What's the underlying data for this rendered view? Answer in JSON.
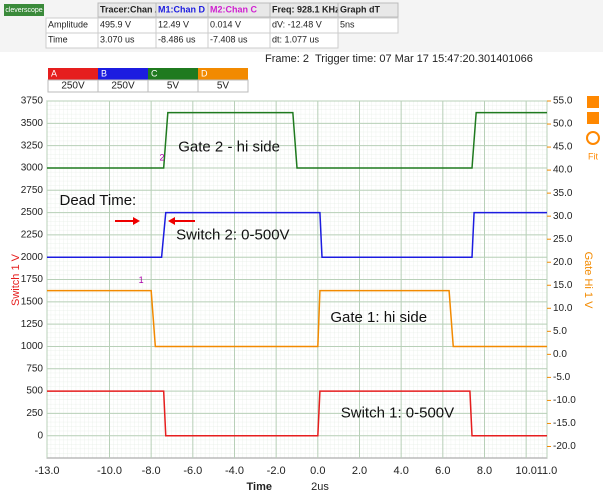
{
  "logo": "cleverscope",
  "measurements": {
    "headers": [
      "Tracer:Chan A",
      "M1:Chan D",
      "M2:Chan C",
      "Freq: 928.1 KHz",
      "Graph dT"
    ],
    "rows": [
      [
        "Amplitude",
        "495.9 V",
        "12.49 V",
        "0.014 V",
        "dV: -12.48 V",
        "5ns"
      ],
      [
        "Time",
        "3.070 us",
        "-8.486 us",
        "-7.408 us",
        "dt:  1.077 us"
      ]
    ]
  },
  "frame": "Frame: 2",
  "trigger": "Trigger time: 07 Mar 17 15:47:20.301401066",
  "channels": [
    {
      "name": "A",
      "scale": "250V",
      "color": "#e61e1e"
    },
    {
      "name": "B",
      "scale": "250V",
      "color": "#1c1ce0"
    },
    {
      "name": "C",
      "scale": "5V",
      "color": "#1f7a1f"
    },
    {
      "name": "D",
      "scale": "5V",
      "color": "#f28a00"
    }
  ],
  "toolbar": {
    "fit": "Fit"
  },
  "chart_data": {
    "type": "line",
    "ylabel": "Switch 1 V",
    "y2label": "Gate Hi 1 V",
    "xlabel": "Time",
    "timebase": "2us",
    "grid": true,
    "xlim": [
      -13,
      11
    ],
    "ylim": [
      -250,
      3750
    ],
    "y2lim": [
      -22.5,
      55
    ],
    "xticks": [
      {
        "value": -13,
        "label": "-13.0"
      },
      {
        "value": -10,
        "label": "-10.0"
      },
      {
        "value": -8,
        "label": "-8.0"
      },
      {
        "value": -6,
        "label": "-6.0"
      },
      {
        "value": -4,
        "label": "-4.0"
      },
      {
        "value": -2,
        "label": "-2.0"
      },
      {
        "value": 0,
        "label": "0.0"
      },
      {
        "value": 2,
        "label": "2.0"
      },
      {
        "value": 4,
        "label": "4.0"
      },
      {
        "value": 6,
        "label": "6.0"
      },
      {
        "value": 8,
        "label": "8.0"
      },
      {
        "value": 10,
        "label": "10.0"
      },
      {
        "value": 11,
        "label": "11.0"
      }
    ],
    "yticks": [
      0,
      250,
      500,
      750,
      1000,
      1250,
      1500,
      1750,
      2000,
      2250,
      2500,
      2750,
      3000,
      3250,
      3500,
      3750
    ],
    "y2ticks": [
      {
        "value": -20,
        "label": "-20.0"
      },
      {
        "value": -15,
        "label": "-15.0"
      },
      {
        "value": -10,
        "label": "-10.0"
      },
      {
        "value": -5,
        "label": "-5.0"
      },
      {
        "value": 0,
        "label": "0.0"
      },
      {
        "value": 5,
        "label": "5.0"
      },
      {
        "value": 10,
        "label": "10.0"
      },
      {
        "value": 15,
        "label": "15.0"
      },
      {
        "value": 20,
        "label": "20.0"
      },
      {
        "value": 25,
        "label": "25.0"
      },
      {
        "value": 30,
        "label": "30.0"
      },
      {
        "value": 35,
        "label": "35.0"
      },
      {
        "value": 40,
        "label": "40.0"
      },
      {
        "value": 45,
        "label": "45.0"
      },
      {
        "value": 50,
        "label": "50.0"
      },
      {
        "value": 55,
        "label": "55.0"
      }
    ],
    "series": [
      {
        "name": "C",
        "color": "#1f7a1f",
        "x": [
          -13,
          -7.4,
          -7.2,
          -1.2,
          -1.0,
          7.4,
          7.6,
          11
        ],
        "values": [
          3000,
          3000,
          3620,
          3620,
          3000,
          3000,
          3620,
          3620
        ]
      },
      {
        "name": "B",
        "color": "#1c1ce0",
        "x": [
          -13,
          -7.5,
          -7.3,
          0.1,
          0.2,
          7.4,
          7.5,
          11
        ],
        "values": [
          2000,
          2000,
          2500,
          2500,
          2000,
          2000,
          2500,
          2500
        ]
      },
      {
        "name": "D",
        "color": "#f28a00",
        "x": [
          -13,
          -8,
          -7.8,
          0,
          0.1,
          6.3,
          6.5,
          11
        ],
        "values": [
          1625,
          1625,
          1000,
          1000,
          1625,
          1625,
          1000,
          1000
        ]
      },
      {
        "name": "A",
        "color": "#e61e1e",
        "x": [
          -13,
          -7.4,
          -7.3,
          0,
          0.1,
          7.3,
          7.4,
          11
        ],
        "values": [
          500,
          500,
          0,
          0,
          500,
          500,
          0,
          0
        ]
      }
    ],
    "annotations": [
      {
        "text": "Gate 2 - hi side",
        "x": -6.7,
        "y": 3230
      },
      {
        "text": "Dead Time:",
        "x": -12.4,
        "y": 2630
      },
      {
        "text": "Switch 2: 0-500V",
        "x": -6.8,
        "y": 2240
      },
      {
        "text": "Gate 1: hi side",
        "x": 0.6,
        "y": 1320
      },
      {
        "text": "Switch 1: 0-500V",
        "x": 1.1,
        "y": 250
      },
      {
        "text": "1",
        "x": -8.6,
        "y": 1740
      },
      {
        "text": "2",
        "x": -7.6,
        "y": 3110
      }
    ]
  }
}
